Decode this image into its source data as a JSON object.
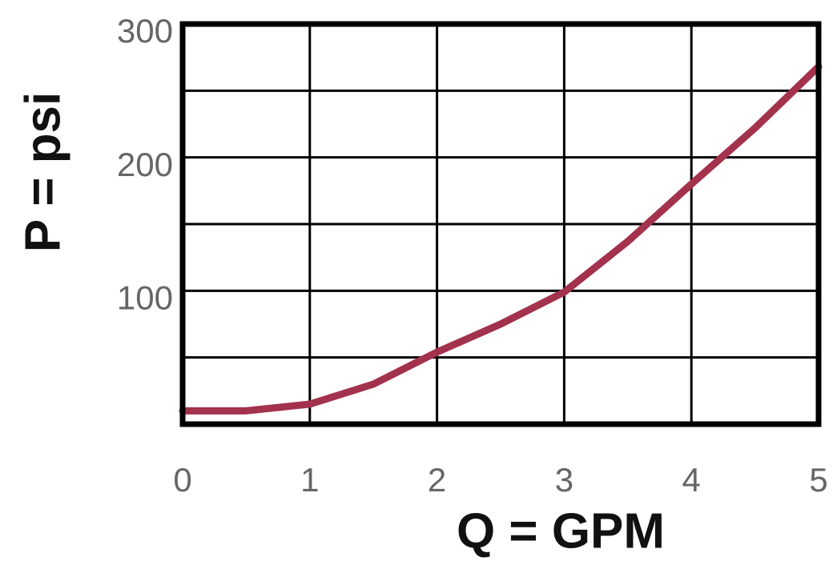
{
  "chart_data": {
    "type": "line",
    "x_label": "Q = GPM",
    "y_label": "P = psi",
    "x": [
      0,
      0.5,
      1,
      1.5,
      2,
      2.5,
      3,
      3.5,
      4,
      4.5,
      5
    ],
    "values": [
      10,
      10,
      15,
      30,
      54,
      75,
      99,
      137,
      180,
      222,
      268
    ],
    "color": "#a3324c",
    "xlim": [
      0,
      5
    ],
    "xticks": [
      0,
      1,
      2,
      3,
      4,
      5
    ],
    "ylim": [
      0,
      300
    ],
    "yticks": [
      100,
      200,
      300
    ],
    "ygrid": [
      50,
      100,
      150,
      200,
      250
    ],
    "grid": true
  }
}
